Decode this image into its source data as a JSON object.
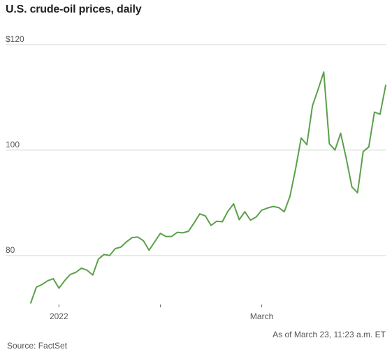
{
  "chart_data": {
    "type": "line",
    "title": "U.S. crude-oil prices, daily",
    "xlabel": "",
    "ylabel": "",
    "ylim": [
      71.5,
      122.5
    ],
    "y_ticks": [
      {
        "value": 120,
        "label": "$120"
      },
      {
        "value": 100,
        "label": "100"
      },
      {
        "value": 80,
        "label": "80"
      }
    ],
    "x_ticks": [
      {
        "label": "2022",
        "index": 5
      },
      {
        "label": "",
        "index": 23
      },
      {
        "label": "March",
        "index": 41
      }
    ],
    "grid": true,
    "color": "#5ba04a",
    "series": [
      {
        "name": "",
        "values": [
          71.0,
          74.0,
          74.5,
          75.2,
          75.6,
          73.8,
          75.2,
          76.4,
          76.8,
          77.6,
          77.2,
          76.3,
          79.3,
          80.2,
          80.0,
          81.3,
          81.6,
          82.6,
          83.4,
          83.5,
          82.8,
          81.0,
          82.6,
          84.2,
          83.6,
          83.6,
          84.4,
          84.3,
          84.6,
          86.2,
          87.9,
          87.5,
          85.7,
          86.5,
          86.4,
          88.4,
          89.8,
          86.8,
          88.3,
          86.7,
          87.3,
          88.6,
          89.0,
          89.3,
          89.1,
          88.3,
          91.2,
          96.4,
          102.3,
          101.0,
          108.4,
          111.5,
          114.8,
          101.2,
          100.0,
          103.2,
          98.4,
          93.0,
          91.9,
          99.7,
          100.6,
          107.2,
          106.8,
          112.3
        ]
      }
    ],
    "annotation": "As of March 23, 11:23 a.m. ET",
    "source": "Source: FactSet"
  }
}
